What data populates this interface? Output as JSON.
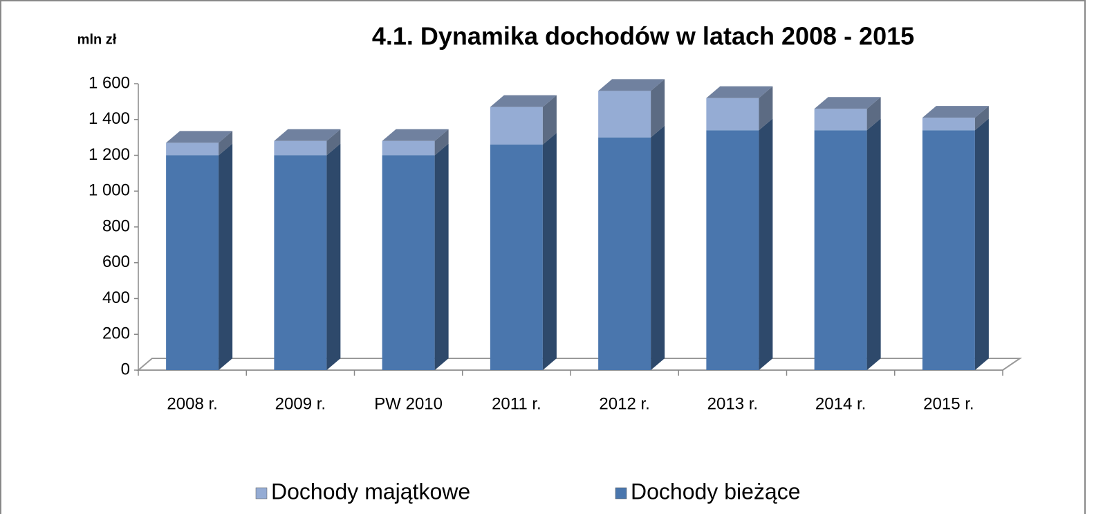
{
  "chart_data": {
    "type": "stacked_bar_3d",
    "title": "4.1. Dynamika dochodów w latach  2008 - 2015",
    "y_label": "mln zł",
    "categories": [
      "2008 r.",
      "2009 r.",
      "PW 2010",
      "2011 r.",
      "2012 r.",
      "2013 r.",
      "2014 r.",
      "2015 r."
    ],
    "series": [
      {
        "name": "Dochody bieżące",
        "color": "#4a76ad",
        "values": [
          1200,
          1200,
          1200,
          1260,
          1300,
          1340,
          1340,
          1340
        ]
      },
      {
        "name": "Dochody majątkowe",
        "color": "#95acd4",
        "values": [
          70,
          80,
          80,
          210,
          260,
          180,
          120,
          70
        ]
      }
    ],
    "ylim": [
      0,
      1600
    ],
    "yticks": [
      0,
      200,
      400,
      600,
      800,
      {
        "value": 1000,
        "label": "1 000"
      },
      {
        "value": 1200,
        "label": "1 200"
      },
      {
        "value": 1400,
        "label": "1 400"
      },
      {
        "value": 1600,
        "label": "1 600"
      }
    ],
    "legend": "bottom"
  }
}
